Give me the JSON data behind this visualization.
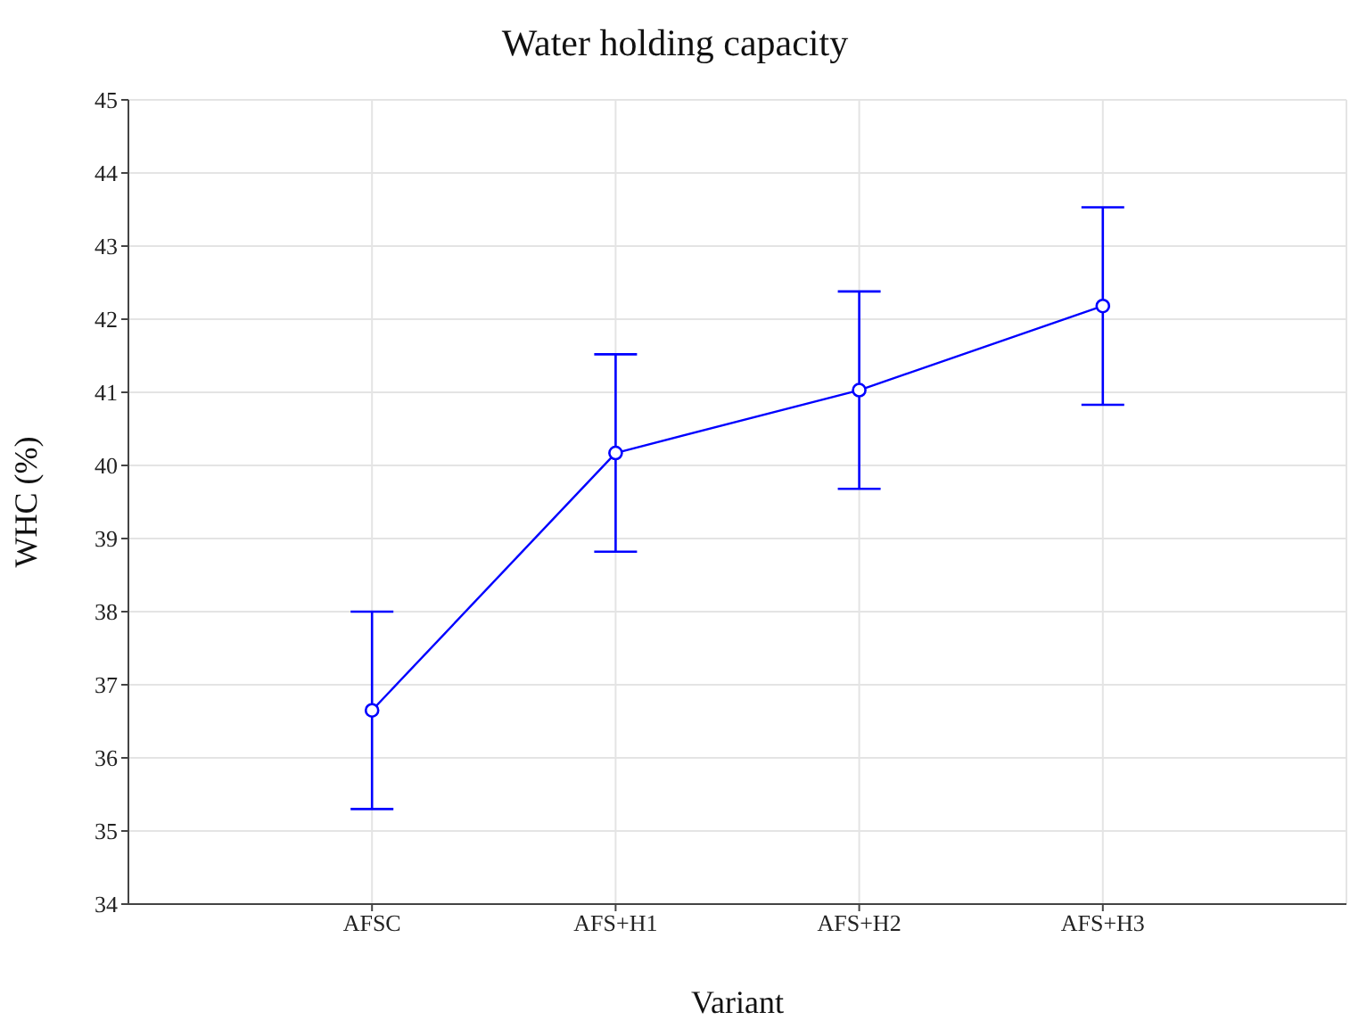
{
  "chart_data": {
    "type": "line",
    "title": "Water holding capacity",
    "xlabel": "Variant",
    "ylabel": "WHC (%)",
    "categories": [
      "AFSC",
      "AFS+H1",
      "AFS+H2",
      "AFS+H3"
    ],
    "series": [
      {
        "color": "#0000ff",
        "values": [
          36.65,
          40.17,
          41.03,
          42.18
        ],
        "errors": [
          1.35,
          1.35,
          1.35,
          1.35
        ]
      }
    ],
    "ylim": [
      34,
      45
    ],
    "yticks": [
      34,
      35,
      36,
      37,
      38,
      39,
      40,
      41,
      42,
      43,
      44,
      45
    ],
    "grid": true,
    "marker": "circle",
    "line_style": "solid"
  }
}
